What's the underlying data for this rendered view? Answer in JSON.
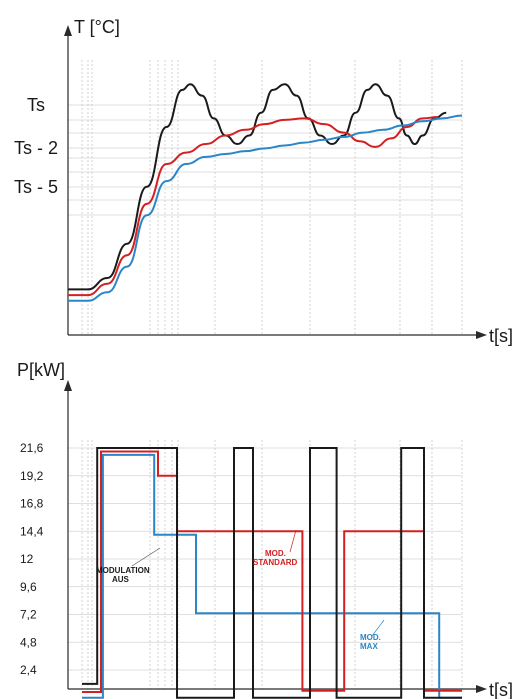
{
  "chart_data": [
    {
      "type": "line",
      "ylabel": "T [°C]",
      "xlabel": "t[s]",
      "ytick_labels": [
        "Ts",
        "Ts - 2",
        "Ts - 5"
      ],
      "series": [
        {
          "color": "#1a1a1a",
          "points": [
            [
              0,
              0.16
            ],
            [
              0.05,
              0.16
            ],
            [
              0.1,
              0.2
            ],
            [
              0.15,
              0.32
            ],
            [
              0.2,
              0.52
            ],
            [
              0.25,
              0.73
            ],
            [
              0.29,
              0.86
            ],
            [
              0.31,
              0.88
            ],
            [
              0.34,
              0.84
            ],
            [
              0.37,
              0.76
            ],
            [
              0.4,
              0.7
            ],
            [
              0.43,
              0.67
            ],
            [
              0.46,
              0.7
            ],
            [
              0.49,
              0.78
            ],
            [
              0.52,
              0.86
            ],
            [
              0.55,
              0.88
            ],
            [
              0.58,
              0.84
            ],
            [
              0.61,
              0.76
            ],
            [
              0.64,
              0.7
            ],
            [
              0.67,
              0.67
            ],
            [
              0.7,
              0.7
            ],
            [
              0.73,
              0.78
            ],
            [
              0.76,
              0.86
            ],
            [
              0.78,
              0.88
            ],
            [
              0.81,
              0.84
            ],
            [
              0.84,
              0.76
            ],
            [
              0.86,
              0.7
            ],
            [
              0.88,
              0.67
            ],
            [
              0.9,
              0.7
            ],
            [
              0.93,
              0.76
            ],
            [
              0.96,
              0.78
            ]
          ]
        },
        {
          "color": "#d42020",
          "points": [
            [
              0,
              0.14
            ],
            [
              0.05,
              0.14
            ],
            [
              0.1,
              0.18
            ],
            [
              0.15,
              0.28
            ],
            [
              0.2,
              0.46
            ],
            [
              0.25,
              0.6
            ],
            [
              0.3,
              0.64
            ],
            [
              0.35,
              0.67
            ],
            [
              0.4,
              0.7
            ],
            [
              0.45,
              0.72
            ],
            [
              0.5,
              0.74
            ],
            [
              0.55,
              0.755
            ],
            [
              0.6,
              0.76
            ],
            [
              0.65,
              0.74
            ],
            [
              0.7,
              0.71
            ],
            [
              0.74,
              0.68
            ],
            [
              0.78,
              0.66
            ],
            [
              0.82,
              0.69
            ],
            [
              0.86,
              0.73
            ],
            [
              0.9,
              0.76
            ],
            [
              0.94,
              0.765
            ]
          ]
        },
        {
          "color": "#2a86c8",
          "points": [
            [
              0,
              0.12
            ],
            [
              0.05,
              0.12
            ],
            [
              0.1,
              0.15
            ],
            [
              0.15,
              0.24
            ],
            [
              0.2,
              0.42
            ],
            [
              0.25,
              0.54
            ],
            [
              0.3,
              0.6
            ],
            [
              0.35,
              0.625
            ],
            [
              0.4,
              0.635
            ],
            [
              0.45,
              0.645
            ],
            [
              0.5,
              0.655
            ],
            [
              0.55,
              0.665
            ],
            [
              0.6,
              0.675
            ],
            [
              0.65,
              0.685
            ],
            [
              0.7,
              0.695
            ],
            [
              0.75,
              0.71
            ],
            [
              0.8,
              0.72
            ],
            [
              0.85,
              0.735
            ],
            [
              0.9,
              0.75
            ],
            [
              0.95,
              0.76
            ],
            [
              1.0,
              0.77
            ]
          ]
        }
      ]
    },
    {
      "type": "line",
      "ylabel": "P[kW]",
      "xlabel": "t[s]",
      "y_ticks": [
        2.4,
        4.8,
        7.2,
        9.6,
        12,
        14.4,
        16.8,
        19.2,
        21.6
      ],
      "ylim": [
        0,
        24
      ],
      "series": [
        {
          "name": "MODULATION AUS",
          "color": "#1a1a1a",
          "steps": [
            [
              0,
              1.2
            ],
            [
              0.04,
              1.2
            ],
            [
              0.04,
              21.6
            ],
            [
              0.25,
              21.6
            ],
            [
              0.25,
              0
            ],
            [
              0.4,
              0
            ],
            [
              0.4,
              21.6
            ],
            [
              0.45,
              21.6
            ],
            [
              0.45,
              0
            ],
            [
              0.6,
              0
            ],
            [
              0.6,
              21.6
            ],
            [
              0.67,
              21.6
            ],
            [
              0.67,
              0
            ],
            [
              0.84,
              0
            ],
            [
              0.84,
              21.6
            ],
            [
              0.9,
              21.6
            ],
            [
              0.9,
              0
            ],
            [
              1.0,
              0
            ]
          ]
        },
        {
          "name": "MOD. STANDARD",
          "color": "#d42020",
          "steps": [
            [
              0,
              0.5
            ],
            [
              0.05,
              0.5
            ],
            [
              0.05,
              21.3
            ],
            [
              0.2,
              21.3
            ],
            [
              0.2,
              19.2
            ],
            [
              0.25,
              19.2
            ],
            [
              0.25,
              14.4
            ],
            [
              0.58,
              14.4
            ],
            [
              0.58,
              0.6
            ],
            [
              0.69,
              0.6
            ],
            [
              0.69,
              14.4
            ],
            [
              0.9,
              14.4
            ],
            [
              0.9,
              0.6
            ],
            [
              1.0,
              0.6
            ]
          ]
        },
        {
          "name": "MOD. MAX",
          "color": "#2a86c8",
          "steps": [
            [
              0,
              0
            ],
            [
              0.055,
              0
            ],
            [
              0.055,
              21
            ],
            [
              0.19,
              21
            ],
            [
              0.19,
              14.1
            ],
            [
              0.3,
              14.1
            ],
            [
              0.3,
              7.3
            ],
            [
              0.94,
              7.3
            ],
            [
              0.94,
              0
            ],
            [
              1.0,
              0
            ]
          ]
        }
      ],
      "annotations": [
        "MODULATION",
        "AUS",
        "MOD.",
        "STANDARD",
        "MOD.",
        "MAX"
      ]
    }
  ]
}
